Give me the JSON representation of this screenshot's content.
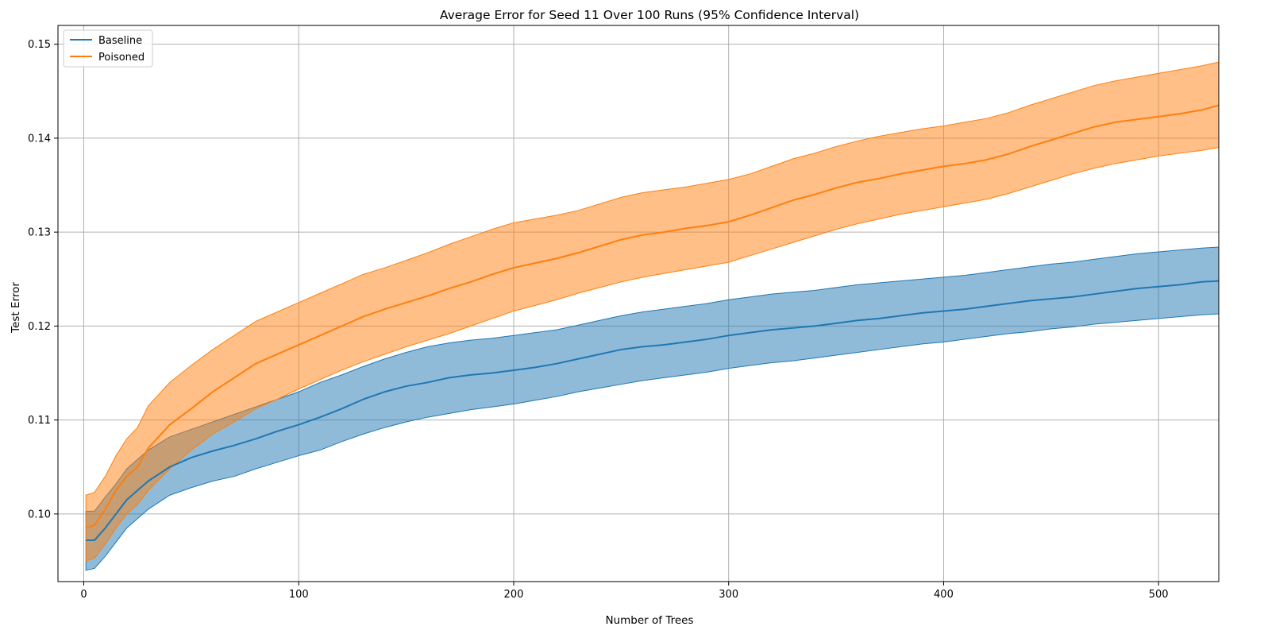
{
  "chart_data": {
    "type": "line",
    "title": "Average Error for Seed 11 Over 100 Runs (95% Confidence Interval)",
    "xlabel": "Number of Trees",
    "ylabel": "Test Error",
    "xlim": [
      -12,
      528
    ],
    "ylim": [
      0.0928,
      0.152
    ],
    "xticks": [
      0,
      100,
      200,
      300,
      400,
      500
    ],
    "yticks": [
      0.1,
      0.11,
      0.12,
      0.13,
      0.14,
      0.15
    ],
    "xtick_labels": [
      "0",
      "100",
      "200",
      "300",
      "400",
      "500"
    ],
    "ytick_labels": [
      "0.10",
      "0.11",
      "0.12",
      "0.13",
      "0.14",
      "0.15"
    ],
    "grid": true,
    "legend_position": "top-left",
    "series": [
      {
        "name": "Baseline",
        "color": "#1f77b4",
        "x": [
          1,
          5,
          10,
          15,
          20,
          25,
          30,
          40,
          50,
          60,
          70,
          80,
          90,
          100,
          110,
          120,
          130,
          140,
          150,
          160,
          170,
          180,
          190,
          200,
          210,
          220,
          230,
          240,
          250,
          260,
          270,
          280,
          290,
          300,
          310,
          320,
          330,
          340,
          350,
          360,
          370,
          380,
          390,
          400,
          410,
          420,
          430,
          440,
          450,
          460,
          470,
          480,
          490,
          500,
          510,
          520,
          528
        ],
        "mean": [
          0.0972,
          0.0972,
          0.0985,
          0.1,
          0.1015,
          0.1025,
          0.1035,
          0.105,
          0.106,
          0.1067,
          0.1073,
          0.108,
          0.1088,
          0.1095,
          0.1103,
          0.1112,
          0.1122,
          0.113,
          0.1136,
          0.114,
          0.1145,
          0.1148,
          0.115,
          0.1153,
          0.1156,
          0.116,
          0.1165,
          0.117,
          0.1175,
          0.1178,
          0.118,
          0.1183,
          0.1186,
          0.119,
          0.1193,
          0.1196,
          0.1198,
          0.12,
          0.1203,
          0.1206,
          0.1208,
          0.1211,
          0.1214,
          0.1216,
          0.1218,
          0.1221,
          0.1224,
          0.1227,
          0.1229,
          0.1231,
          0.1234,
          0.1237,
          0.124,
          0.1242,
          0.1244,
          0.1247,
          0.1248
        ],
        "lower": [
          0.094,
          0.0942,
          0.0955,
          0.097,
          0.0985,
          0.0995,
          0.1005,
          0.102,
          0.1028,
          0.1035,
          0.104,
          0.1048,
          0.1055,
          0.1062,
          0.1068,
          0.1077,
          0.1085,
          0.1092,
          0.1098,
          0.1103,
          0.1107,
          0.1111,
          0.1114,
          0.1117,
          0.1121,
          0.1125,
          0.113,
          0.1134,
          0.1138,
          0.1142,
          0.1145,
          0.1148,
          0.1151,
          0.1155,
          0.1158,
          0.1161,
          0.1163,
          0.1166,
          0.1169,
          0.1172,
          0.1175,
          0.1178,
          0.1181,
          0.1183,
          0.1186,
          0.1189,
          0.1192,
          0.1194,
          0.1197,
          0.1199,
          0.1202,
          0.1204,
          0.1206,
          0.1208,
          0.121,
          0.1212,
          0.1213
        ],
        "upper": [
          0.1003,
          0.1003,
          0.1018,
          0.1032,
          0.1048,
          0.1058,
          0.1068,
          0.1082,
          0.109,
          0.1098,
          0.1106,
          0.1114,
          0.1122,
          0.113,
          0.114,
          0.1148,
          0.1157,
          0.1165,
          0.1172,
          0.1178,
          0.1182,
          0.1185,
          0.1187,
          0.119,
          0.1193,
          0.1196,
          0.1201,
          0.1206,
          0.1211,
          0.1215,
          0.1218,
          0.1221,
          0.1224,
          0.1228,
          0.1231,
          0.1234,
          0.1236,
          0.1238,
          0.1241,
          0.1244,
          0.1246,
          0.1248,
          0.125,
          0.1252,
          0.1254,
          0.1257,
          0.126,
          0.1263,
          0.1266,
          0.1268,
          0.1271,
          0.1274,
          0.1277,
          0.1279,
          0.1281,
          0.1283,
          0.1284
        ]
      },
      {
        "name": "Poisoned",
        "color": "#ff7f0e",
        "x": [
          1,
          5,
          10,
          15,
          20,
          25,
          30,
          40,
          50,
          60,
          70,
          80,
          90,
          100,
          110,
          120,
          130,
          140,
          150,
          160,
          170,
          180,
          190,
          200,
          210,
          220,
          230,
          240,
          250,
          260,
          270,
          280,
          290,
          300,
          310,
          320,
          330,
          340,
          350,
          360,
          370,
          380,
          390,
          400,
          410,
          420,
          430,
          440,
          450,
          460,
          470,
          480,
          490,
          500,
          510,
          520,
          528
        ],
        "mean": [
          0.0985,
          0.0988,
          0.1005,
          0.1025,
          0.104,
          0.105,
          0.107,
          0.1095,
          0.1112,
          0.113,
          0.1145,
          0.116,
          0.117,
          0.118,
          0.119,
          0.12,
          0.121,
          0.1218,
          0.1225,
          0.1232,
          0.124,
          0.1247,
          0.1255,
          0.1262,
          0.1267,
          0.1272,
          0.1278,
          0.1285,
          0.1292,
          0.1297,
          0.13,
          0.1304,
          0.1307,
          0.1311,
          0.1318,
          0.1326,
          0.1334,
          0.134,
          0.1347,
          0.1353,
          0.1357,
          0.1362,
          0.1366,
          0.137,
          0.1373,
          0.1377,
          0.1383,
          0.1391,
          0.1398,
          0.1405,
          0.1412,
          0.1417,
          0.142,
          0.1423,
          0.1426,
          0.143,
          0.1435
        ],
        "lower": [
          0.095,
          0.0953,
          0.0968,
          0.0985,
          0.1,
          0.101,
          0.1025,
          0.1048,
          0.1068,
          0.1085,
          0.1098,
          0.1112,
          0.1122,
          0.1133,
          0.1143,
          0.1153,
          0.1162,
          0.117,
          0.1178,
          0.1185,
          0.1192,
          0.12,
          0.1208,
          0.1216,
          0.1222,
          0.1228,
          0.1235,
          0.1241,
          0.1247,
          0.1252,
          0.1256,
          0.126,
          0.1264,
          0.1268,
          0.1275,
          0.1282,
          0.1289,
          0.1296,
          0.1303,
          0.1309,
          0.1314,
          0.1319,
          0.1323,
          0.1327,
          0.1331,
          0.1335,
          0.1341,
          0.1348,
          0.1355,
          0.1362,
          0.1368,
          0.1373,
          0.1377,
          0.1381,
          0.1384,
          0.1387,
          0.139
        ],
        "upper": [
          0.102,
          0.1023,
          0.104,
          0.1062,
          0.108,
          0.1092,
          0.1115,
          0.114,
          0.1158,
          0.1175,
          0.119,
          0.1205,
          0.1215,
          0.1225,
          0.1235,
          0.1245,
          0.1255,
          0.1262,
          0.127,
          0.1278,
          0.1287,
          0.1295,
          0.1303,
          0.131,
          0.1314,
          0.1318,
          0.1323,
          0.133,
          0.1337,
          0.1342,
          0.1345,
          0.1348,
          0.1352,
          0.1356,
          0.1362,
          0.137,
          0.1378,
          0.1384,
          0.1391,
          0.1397,
          0.1402,
          0.1406,
          0.141,
          0.1413,
          0.1417,
          0.1421,
          0.1427,
          0.1435,
          0.1442,
          0.1449,
          0.1456,
          0.1461,
          0.1465,
          0.1469,
          0.1473,
          0.1477,
          0.1481
        ]
      }
    ]
  }
}
